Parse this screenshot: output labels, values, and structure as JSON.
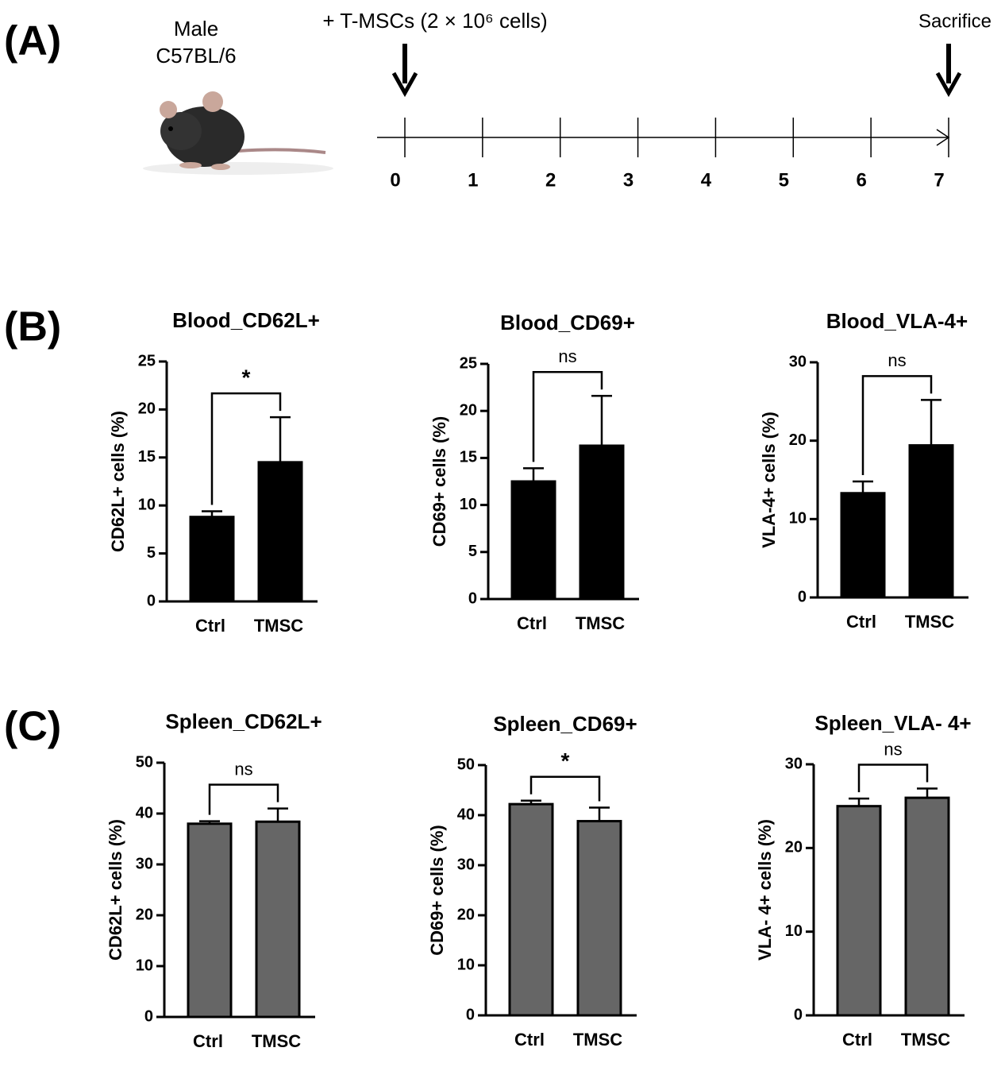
{
  "panel_labels": [
    "(A)",
    "(B)",
    "(C)"
  ],
  "timeline": {
    "subject": [
      "Male",
      "C57BL/6"
    ],
    "injection": "+ T-MSCs (2 × 10⁶ cells)",
    "end_label": "Sacrifice",
    "days": [
      0,
      1,
      2,
      3,
      4,
      5,
      6,
      7
    ]
  },
  "chart_data": [
    {
      "type": "bar",
      "title": "Blood_CD62L+",
      "ylabel": "CD62L+ cells (%)",
      "categories": [
        "Ctrl",
        "TMSC"
      ],
      "values": [
        8.8,
        14.5
      ],
      "errors": [
        0.6,
        4.7
      ],
      "color": "#000000",
      "ylim": [
        0,
        25
      ],
      "yticks": [
        0,
        5,
        10,
        15,
        20,
        25
      ],
      "significance": "*"
    },
    {
      "type": "bar",
      "title": "Blood_CD69+",
      "ylabel": "CD69+ cells (%)",
      "categories": [
        "Ctrl",
        "TMSC"
      ],
      "values": [
        12.5,
        16.3
      ],
      "errors": [
        1.4,
        5.3
      ],
      "color": "#000000",
      "ylim": [
        0,
        25
      ],
      "yticks": [
        0,
        5,
        10,
        15,
        20,
        25
      ],
      "significance": "ns"
    },
    {
      "type": "bar",
      "title": "Blood_VLA-4+",
      "ylabel": "VLA-4+ cells (%)",
      "categories": [
        "Ctrl",
        "TMSC"
      ],
      "values": [
        13.3,
        19.4
      ],
      "errors": [
        1.5,
        5.8
      ],
      "color": "#000000",
      "ylim": [
        0,
        30
      ],
      "yticks": [
        0,
        10,
        20,
        30
      ],
      "significance": "ns"
    },
    {
      "type": "bar",
      "title": "Spleen_CD62L+",
      "ylabel": "CD62L+ cells (%)",
      "categories": [
        "Ctrl",
        "TMSC"
      ],
      "values": [
        38.0,
        38.4
      ],
      "errors": [
        0.5,
        2.6
      ],
      "color": "#666666",
      "ylim": [
        0,
        50
      ],
      "yticks": [
        0,
        10,
        20,
        30,
        40,
        50
      ],
      "significance": "ns"
    },
    {
      "type": "bar",
      "title": "Spleen_CD69+",
      "ylabel": "CD69+ cells (%)",
      "categories": [
        "Ctrl",
        "TMSC"
      ],
      "values": [
        42.2,
        38.8
      ],
      "errors": [
        0.7,
        2.7
      ],
      "color": "#666666",
      "ylim": [
        0,
        50
      ],
      "yticks": [
        0,
        10,
        20,
        30,
        40,
        50
      ],
      "significance": "*"
    },
    {
      "type": "bar",
      "title": "Spleen_VLA- 4+",
      "ylabel": "VLA- 4+ cells (%)",
      "categories": [
        "Ctrl",
        "TMSC"
      ],
      "values": [
        25.0,
        26.0
      ],
      "errors": [
        0.9,
        1.1
      ],
      "color": "#666666",
      "ylim": [
        0,
        30
      ],
      "yticks": [
        0,
        10,
        20,
        30
      ],
      "significance": "ns"
    }
  ]
}
